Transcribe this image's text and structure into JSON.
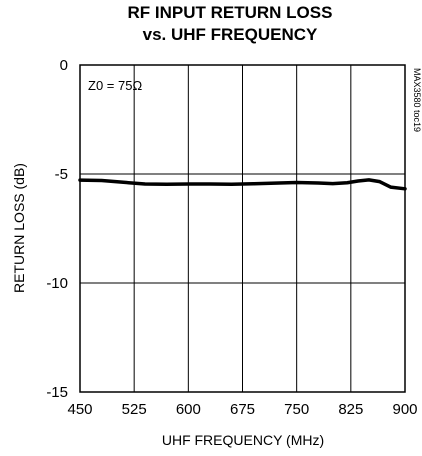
{
  "chart_data": {
    "type": "line",
    "title_line1": "RF INPUT RETURN LOSS",
    "title_line2": "vs. UHF FREQUENCY",
    "xlabel": "UHF FREQUENCY (MHz)",
    "ylabel": "RETURN LOSS (dB)",
    "annotation": "Z0 = 75Ω",
    "side_id": "MAX3580 toc19",
    "xlim": [
      450,
      900
    ],
    "ylim": [
      -15,
      0
    ],
    "x_ticks": [
      450,
      525,
      600,
      675,
      750,
      825,
      900
    ],
    "x_tick_labels": [
      "450",
      "525",
      "600",
      "675",
      "750",
      "825",
      "900"
    ],
    "y_ticks": [
      0,
      -5,
      -10,
      -15
    ],
    "y_tick_labels": [
      "0",
      "-5",
      "-10",
      "-15"
    ],
    "grid": true,
    "series": [
      {
        "color": "#000000",
        "x": [
          450,
          480,
          510,
          540,
          570,
          600,
          630,
          660,
          690,
          720,
          750,
          780,
          800,
          820,
          835,
          850,
          865,
          880,
          900
        ],
        "y": [
          -5.28,
          -5.3,
          -5.38,
          -5.46,
          -5.47,
          -5.46,
          -5.46,
          -5.47,
          -5.45,
          -5.42,
          -5.39,
          -5.41,
          -5.44,
          -5.4,
          -5.32,
          -5.27,
          -5.35,
          -5.6,
          -5.68
        ]
      }
    ]
  }
}
